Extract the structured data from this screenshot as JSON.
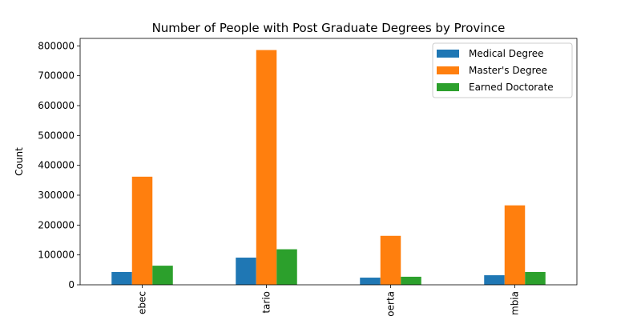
{
  "chart_data": {
    "type": "bar",
    "title": "Number of People with Post Graduate Degrees by Province",
    "xlabel": "",
    "ylabel": "Count",
    "ylim": [
      0,
      825000
    ],
    "yticks": [
      0,
      100000,
      200000,
      300000,
      400000,
      500000,
      600000,
      700000,
      800000
    ],
    "ytick_labels": [
      "0",
      "100000",
      "200000",
      "300000",
      "400000",
      "500000",
      "600000",
      "700000",
      "800000"
    ],
    "categories": [
      "Quebec",
      "Ontario",
      "Alberta",
      "British Columbia"
    ],
    "category_labels_visible": [
      "ebec",
      "tario",
      "oerta",
      "mbia"
    ],
    "grid": false,
    "legend_position": "upper right",
    "series": [
      {
        "name": "Medical Degree",
        "color": "#1f77b4",
        "values": [
          43000,
          91000,
          24000,
          32000
        ]
      },
      {
        "name": "Master's Degree",
        "color": "#ff7f0e",
        "values": [
          362000,
          786000,
          164000,
          266000
        ]
      },
      {
        "name": "Earned Doctorate",
        "color": "#2ca02c",
        "values": [
          64000,
          119000,
          27000,
          43000
        ]
      }
    ]
  }
}
